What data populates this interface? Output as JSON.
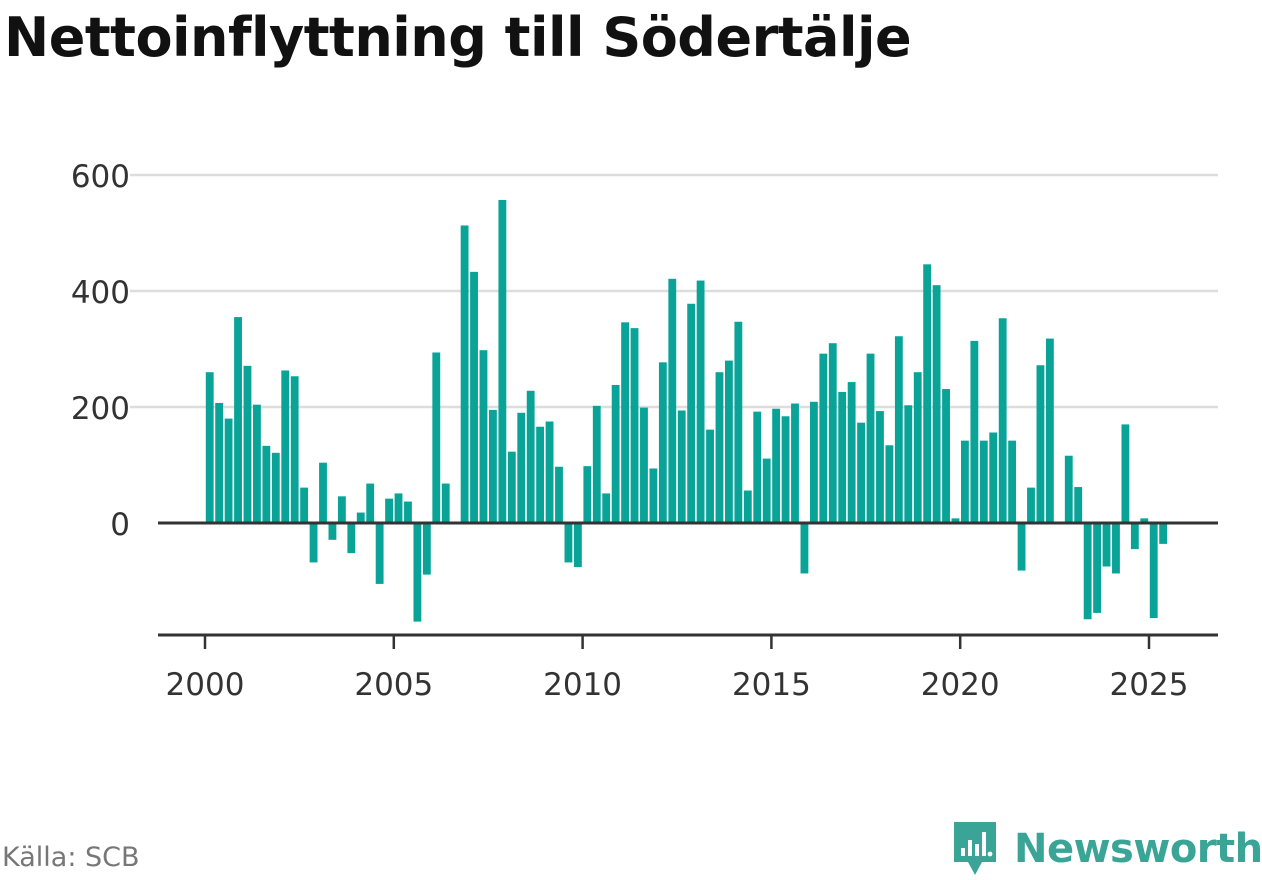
{
  "chart_data": {
    "type": "bar",
    "title": "Nettoinflyttning till Södertälje",
    "source": "Källa: SCB",
    "brand": "Newsworthy",
    "bar_color": "#0aa397",
    "xlabel": "",
    "ylabel": "",
    "grid": true,
    "x_range": [
      1997.5,
      2026.35
    ],
    "ylim": [
      -190,
      620
    ],
    "yticks": [
      "600",
      "400",
      "200",
      "0"
    ],
    "ytick_values": [
      600,
      400,
      200,
      0
    ],
    "xticks": [
      "2000",
      "2005",
      "2010",
      "2015",
      "2020",
      "2025"
    ],
    "xtick_values": [
      2000,
      2005,
      2010,
      2015,
      2020,
      2025
    ],
    "x": [
      2000.125,
      2000.375,
      2000.625,
      2000.875,
      2001.125,
      2001.375,
      2001.625,
      2001.875,
      2002.125,
      2002.375,
      2002.625,
      2002.875,
      2003.125,
      2003.375,
      2003.625,
      2003.875,
      2004.125,
      2004.375,
      2004.625,
      2004.875,
      2005.125,
      2005.375,
      2005.625,
      2005.875,
      2006.125,
      2006.375,
      2006.625,
      2006.875,
      2007.125,
      2007.375,
      2007.625,
      2007.875,
      2008.125,
      2008.375,
      2008.625,
      2008.875,
      2009.125,
      2009.375,
      2009.625,
      2009.875,
      2010.125,
      2010.375,
      2010.625,
      2010.875,
      2011.125,
      2011.375,
      2011.625,
      2011.875,
      2012.125,
      2012.375,
      2012.625,
      2012.875,
      2013.125,
      2013.375,
      2013.625,
      2013.875,
      2014.125,
      2014.375,
      2014.625,
      2014.875,
      2015.125,
      2015.375,
      2015.625,
      2015.875,
      2016.125,
      2016.375,
      2016.625,
      2016.875,
      2017.125,
      2017.375,
      2017.625,
      2017.875,
      2018.125,
      2018.375,
      2018.625,
      2018.875,
      2019.125,
      2019.375,
      2019.625,
      2019.875,
      2020.125,
      2020.375,
      2020.625,
      2020.875,
      2021.125,
      2021.375,
      2021.625,
      2021.875,
      2022.125,
      2022.375,
      2022.625,
      2022.875,
      2023.125,
      2023.375,
      2023.625,
      2023.875,
      2024.125,
      2024.375,
      2024.625,
      2024.875,
      2025.125,
      2025.375
    ],
    "values": [
      260,
      207,
      180,
      355,
      271,
      204,
      133,
      121,
      263,
      253,
      61,
      -68,
      104,
      -29,
      46,
      -52,
      18,
      68,
      -105,
      42,
      51,
      37,
      -170,
      -89,
      294,
      68,
      0,
      513,
      433,
      298,
      195,
      557,
      123,
      190,
      228,
      166,
      175,
      97,
      -68,
      -76,
      98,
      202,
      51,
      238,
      346,
      336,
      199,
      94,
      277,
      421,
      194,
      378,
      418,
      161,
      260,
      280,
      347,
      56,
      192,
      111,
      197,
      184,
      206,
      -87,
      209,
      292,
      310,
      226,
      243,
      173,
      292,
      193,
      134,
      322,
      203,
      260,
      446,
      410,
      231,
      8,
      142,
      314,
      142,
      156,
      353,
      142,
      -82,
      61,
      272,
      318,
      0,
      116,
      62,
      -166,
      -155,
      -75,
      -87,
      170,
      -45,
      8,
      -164,
      -36
    ]
  }
}
